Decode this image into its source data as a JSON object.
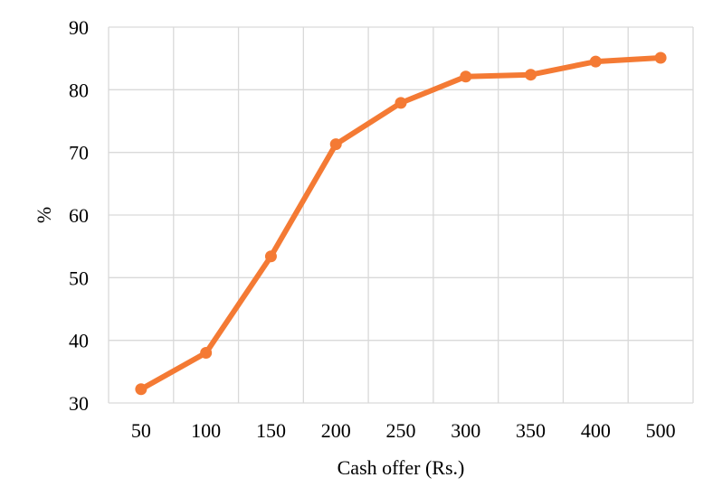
{
  "chart_data": {
    "type": "line",
    "title": "",
    "xlabel": "Cash offer (Rs.)",
    "ylabel": "%",
    "categories": [
      "50",
      "100",
      "150",
      "200",
      "250",
      "300",
      "350",
      "400",
      "500"
    ],
    "series": [
      {
        "values": [
          32.2,
          38.0,
          53.4,
          71.3,
          77.9,
          82.1,
          82.4,
          84.5,
          85.1
        ],
        "color": "#F47A34"
      }
    ],
    "ylim": [
      30,
      90
    ],
    "yticks": [
      30,
      40,
      50,
      60,
      70,
      80,
      90
    ],
    "grid": true,
    "gridline_color": "#d9d9d9",
    "legend": "none"
  }
}
